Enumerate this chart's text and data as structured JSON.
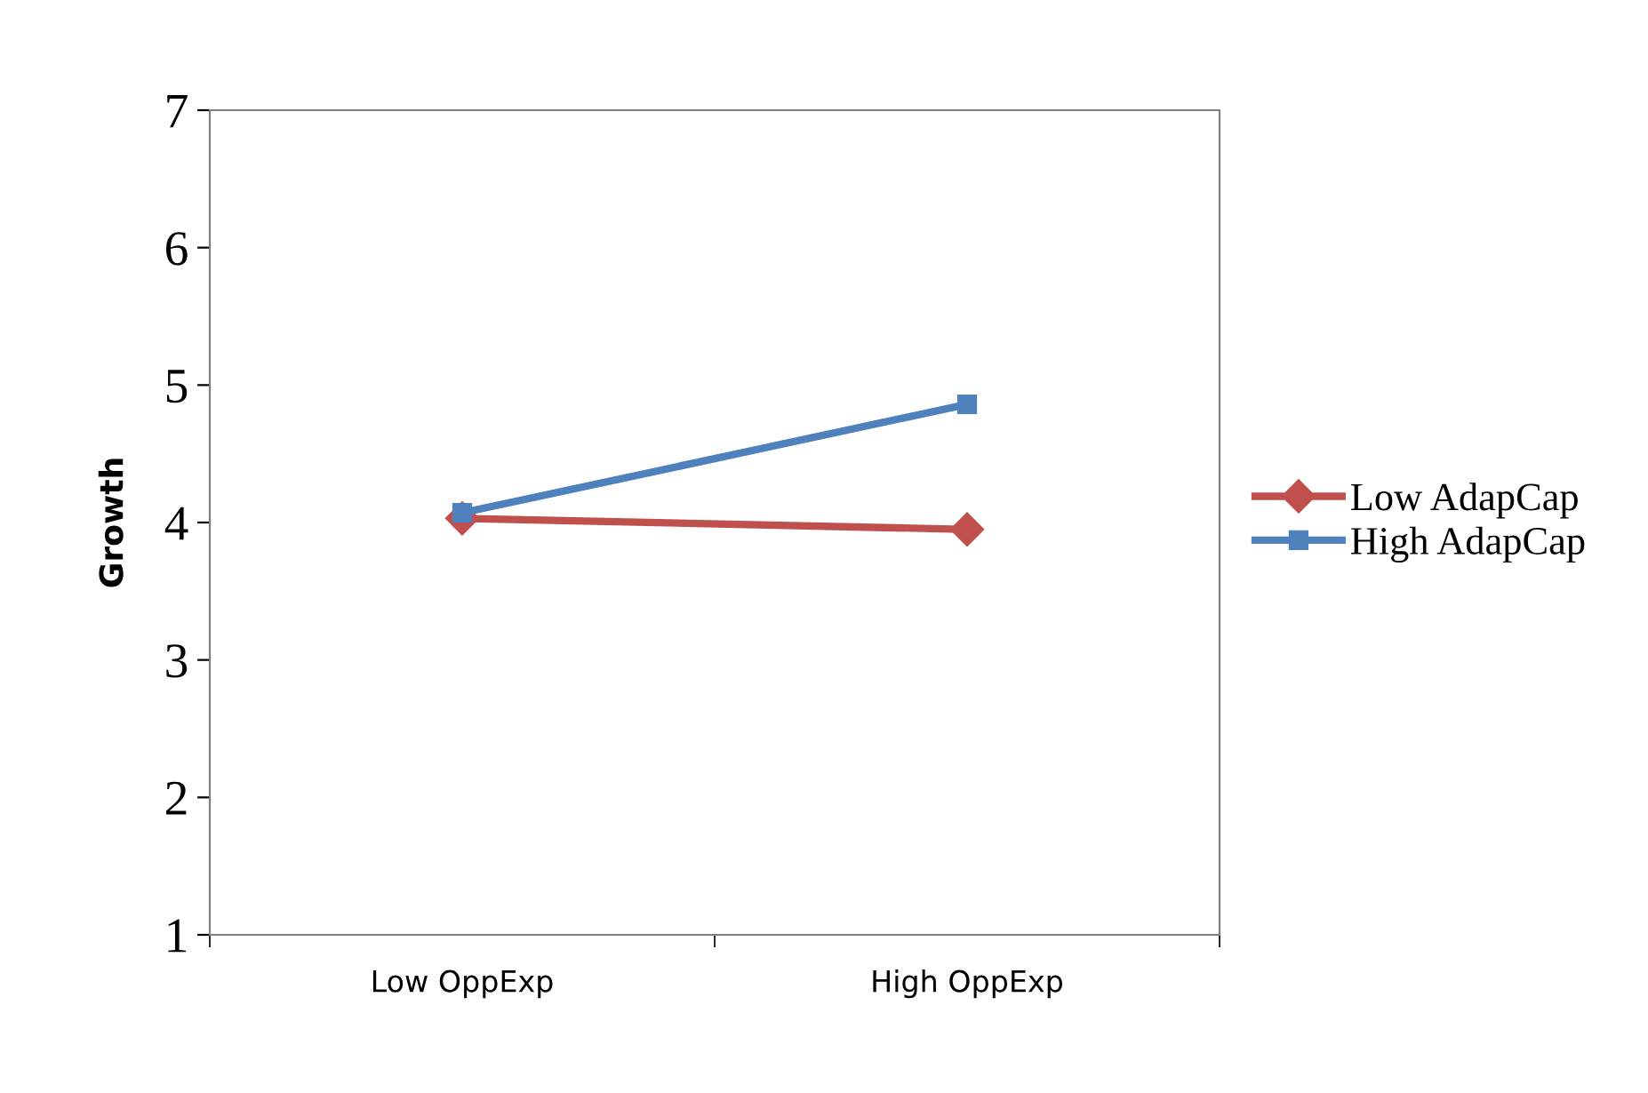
{
  "chart_data": {
    "type": "line",
    "ylabel": "Growth",
    "categories": [
      "Low OppExp",
      "High OppExp"
    ],
    "series": [
      {
        "name": "Low AdapCap",
        "color": "#c0504d",
        "values": [
          4.03,
          3.95
        ],
        "marker": "diamond"
      },
      {
        "name": "High AdapCap",
        "color": "#4f81bd",
        "values": [
          4.07,
          4.86
        ],
        "marker": "square"
      }
    ],
    "ylim": [
      1,
      7
    ],
    "yticks": [
      1,
      2,
      3,
      4,
      5,
      6,
      7
    ],
    "grid": false,
    "legend": "right"
  }
}
